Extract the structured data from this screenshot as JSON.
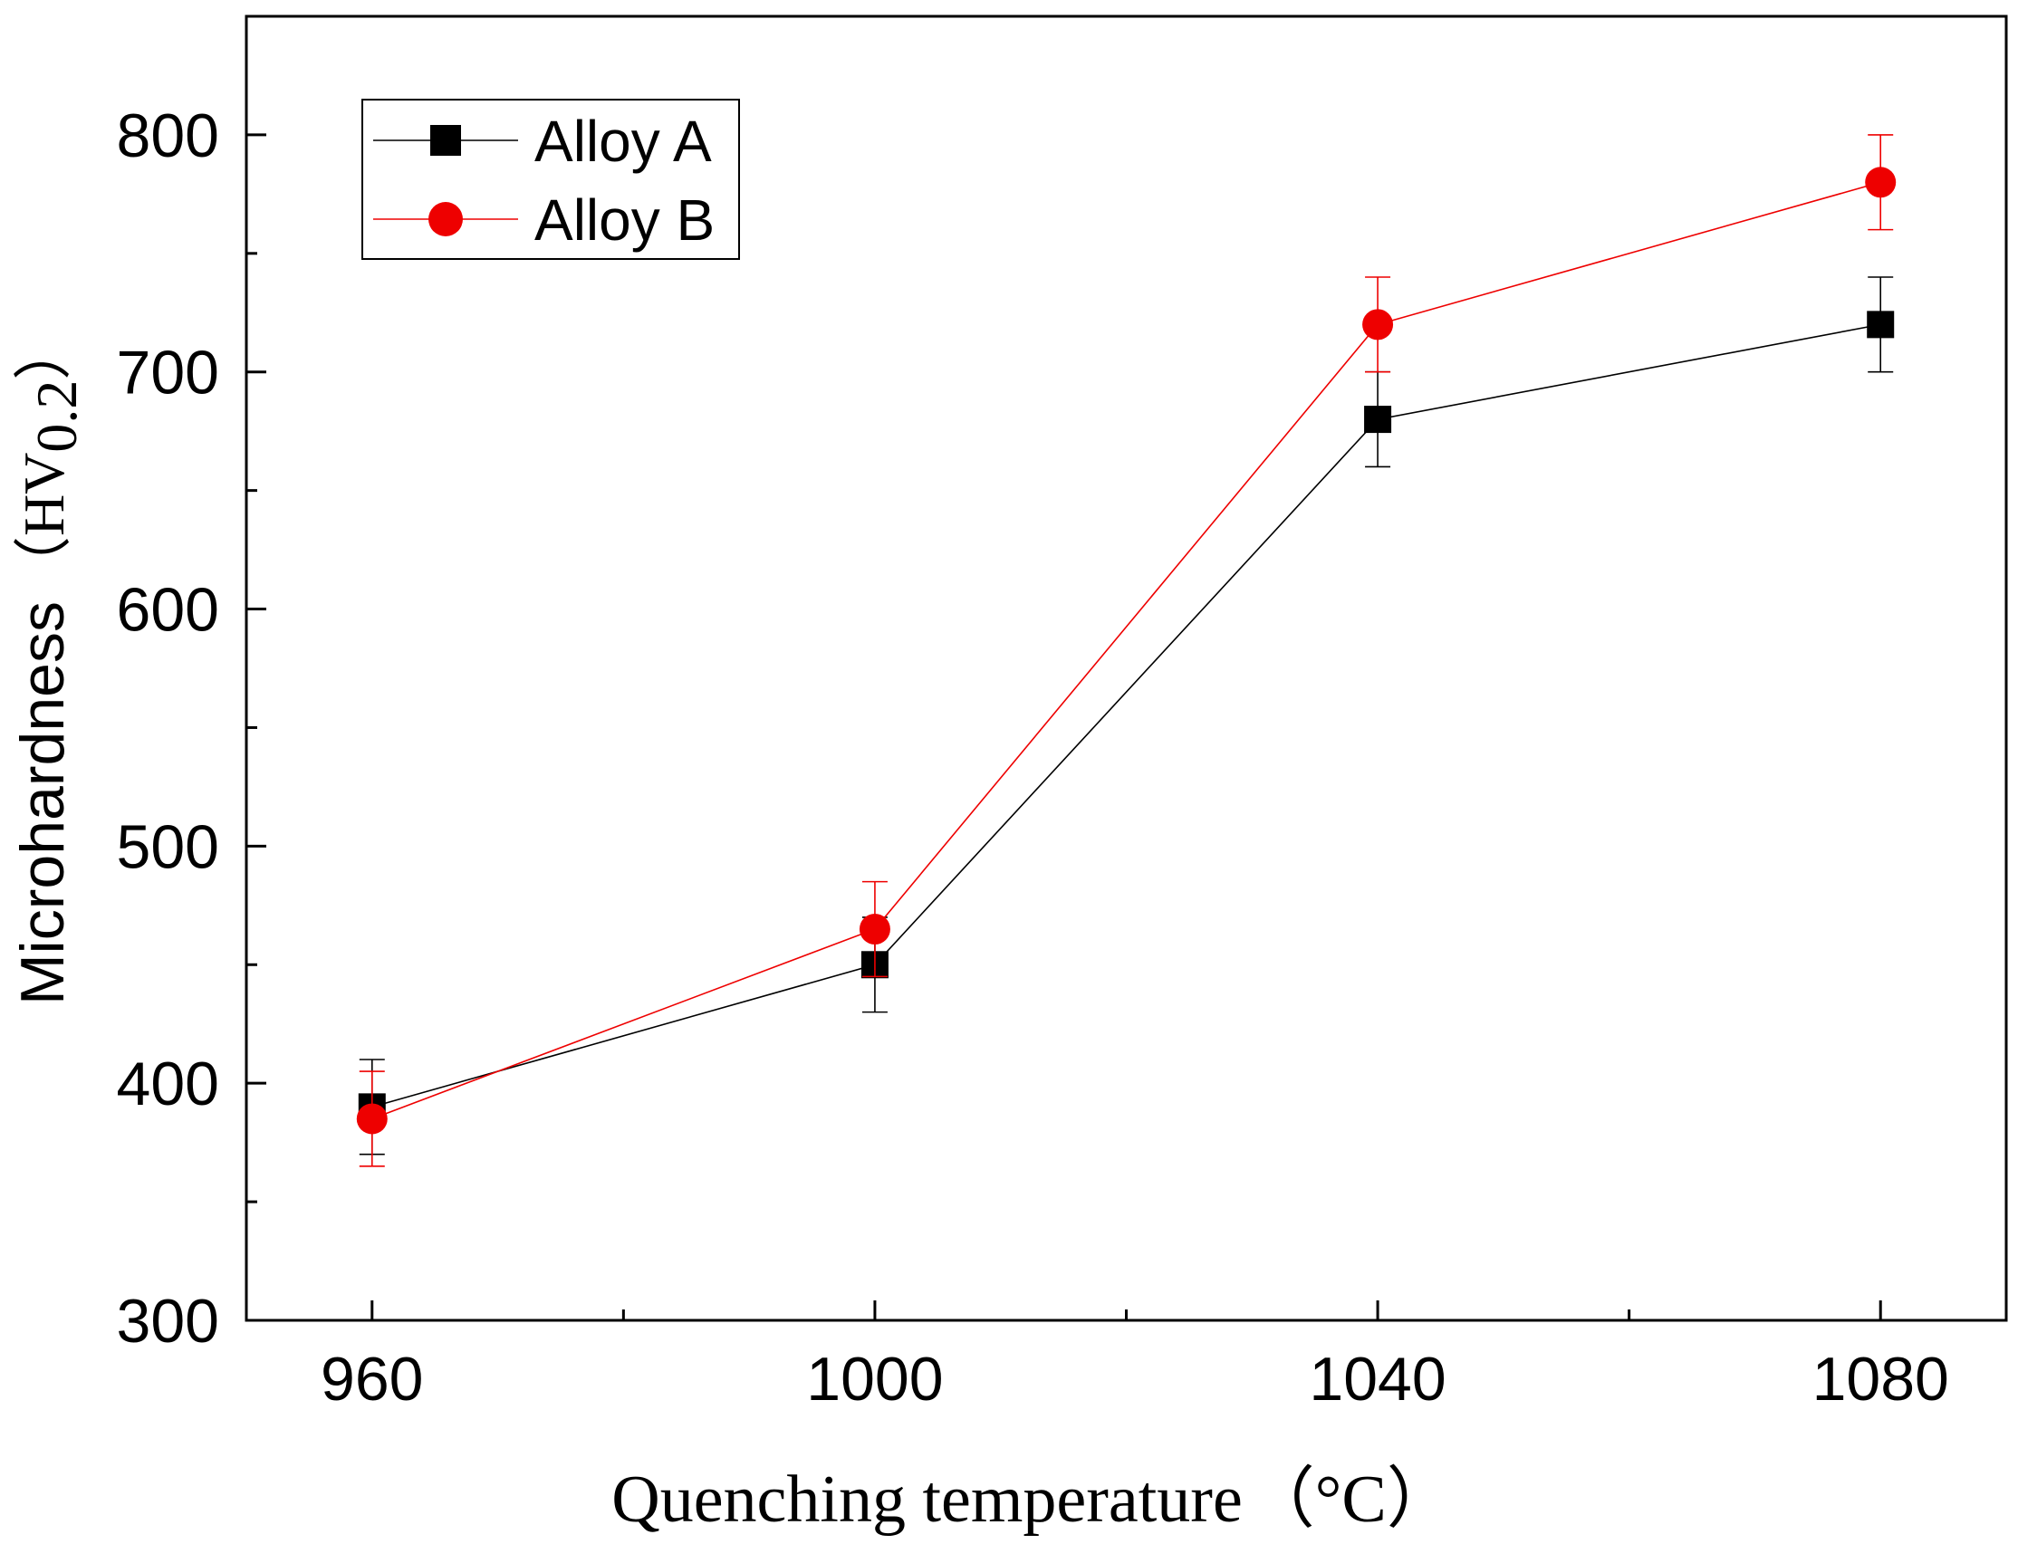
{
  "chart_data": {
    "type": "line",
    "title": "",
    "xlabel": "Quenching temperature",
    "xlabel_unit": "（°C）",
    "ylabel": "Microhardness",
    "ylabel_unit_main": "（HV",
    "ylabel_unit_sub": "0.2",
    "ylabel_unit_close": "）",
    "x": [
      960,
      1000,
      1040,
      1080
    ],
    "xlim": [
      950,
      1090
    ],
    "ylim": [
      300,
      850
    ],
    "xticks": [
      960,
      1000,
      1040,
      1080
    ],
    "xtick_labels": [
      "960",
      "1000",
      "1040",
      "1080"
    ],
    "x_minor_ticks": [
      980,
      1020,
      1060
    ],
    "yticks": [
      300,
      400,
      500,
      600,
      700,
      800
    ],
    "ytick_labels": [
      "300",
      "400",
      "500",
      "600",
      "700",
      "800"
    ],
    "y_minor_ticks": [
      350,
      450,
      550,
      650,
      750
    ],
    "grid": false,
    "legend_position": "top-left",
    "series": [
      {
        "name": "Alloy A",
        "color": "#000000",
        "marker": "square",
        "values": [
          390,
          450,
          680,
          720
        ],
        "errors": [
          20,
          20,
          20,
          20
        ]
      },
      {
        "name": "Alloy B",
        "color": "#ee0000",
        "marker": "circle",
        "values": [
          385,
          465,
          720,
          780
        ],
        "errors": [
          20,
          20,
          20,
          20
        ]
      }
    ]
  }
}
